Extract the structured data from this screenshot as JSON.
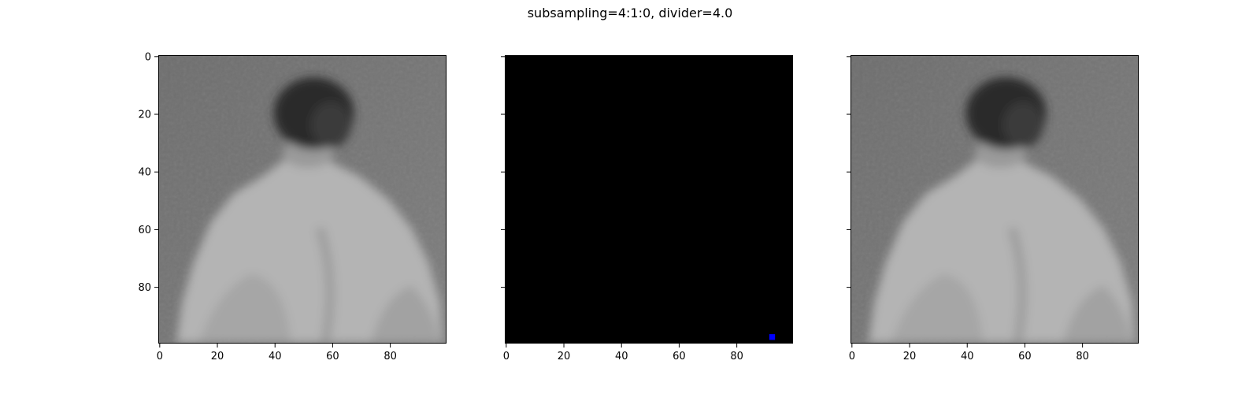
{
  "figure": {
    "title": "subsampling=4:1:0, divider=4.0"
  },
  "chart_data": [
    {
      "type": "image",
      "panel": 1,
      "content": "grayscale photo of a person's back and head",
      "xlim": [
        0,
        99
      ],
      "ylim": [
        99,
        0
      ],
      "xticks": [
        0,
        20,
        40,
        60,
        80
      ],
      "yticks": [
        0,
        20,
        40,
        60,
        80
      ],
      "show_yticklabels": true
    },
    {
      "type": "image",
      "panel": 2,
      "content": "difference image, almost entirely black",
      "xlim": [
        0,
        99
      ],
      "ylim": [
        99,
        0
      ],
      "xticks": [
        0,
        20,
        40,
        60,
        80
      ],
      "yticks": [
        0,
        20,
        40,
        60,
        80
      ],
      "show_yticklabels": false,
      "background_color": "#000000",
      "marker": {
        "x": 92,
        "y": 98,
        "color": "#0000ff"
      }
    },
    {
      "type": "image",
      "panel": 3,
      "content": "grayscale photo of a person's back and head",
      "xlim": [
        0,
        99
      ],
      "ylim": [
        99,
        0
      ],
      "xticks": [
        0,
        20,
        40,
        60,
        80
      ],
      "yticks": [
        0,
        20,
        40,
        60,
        80
      ],
      "show_yticklabels": false
    }
  ]
}
